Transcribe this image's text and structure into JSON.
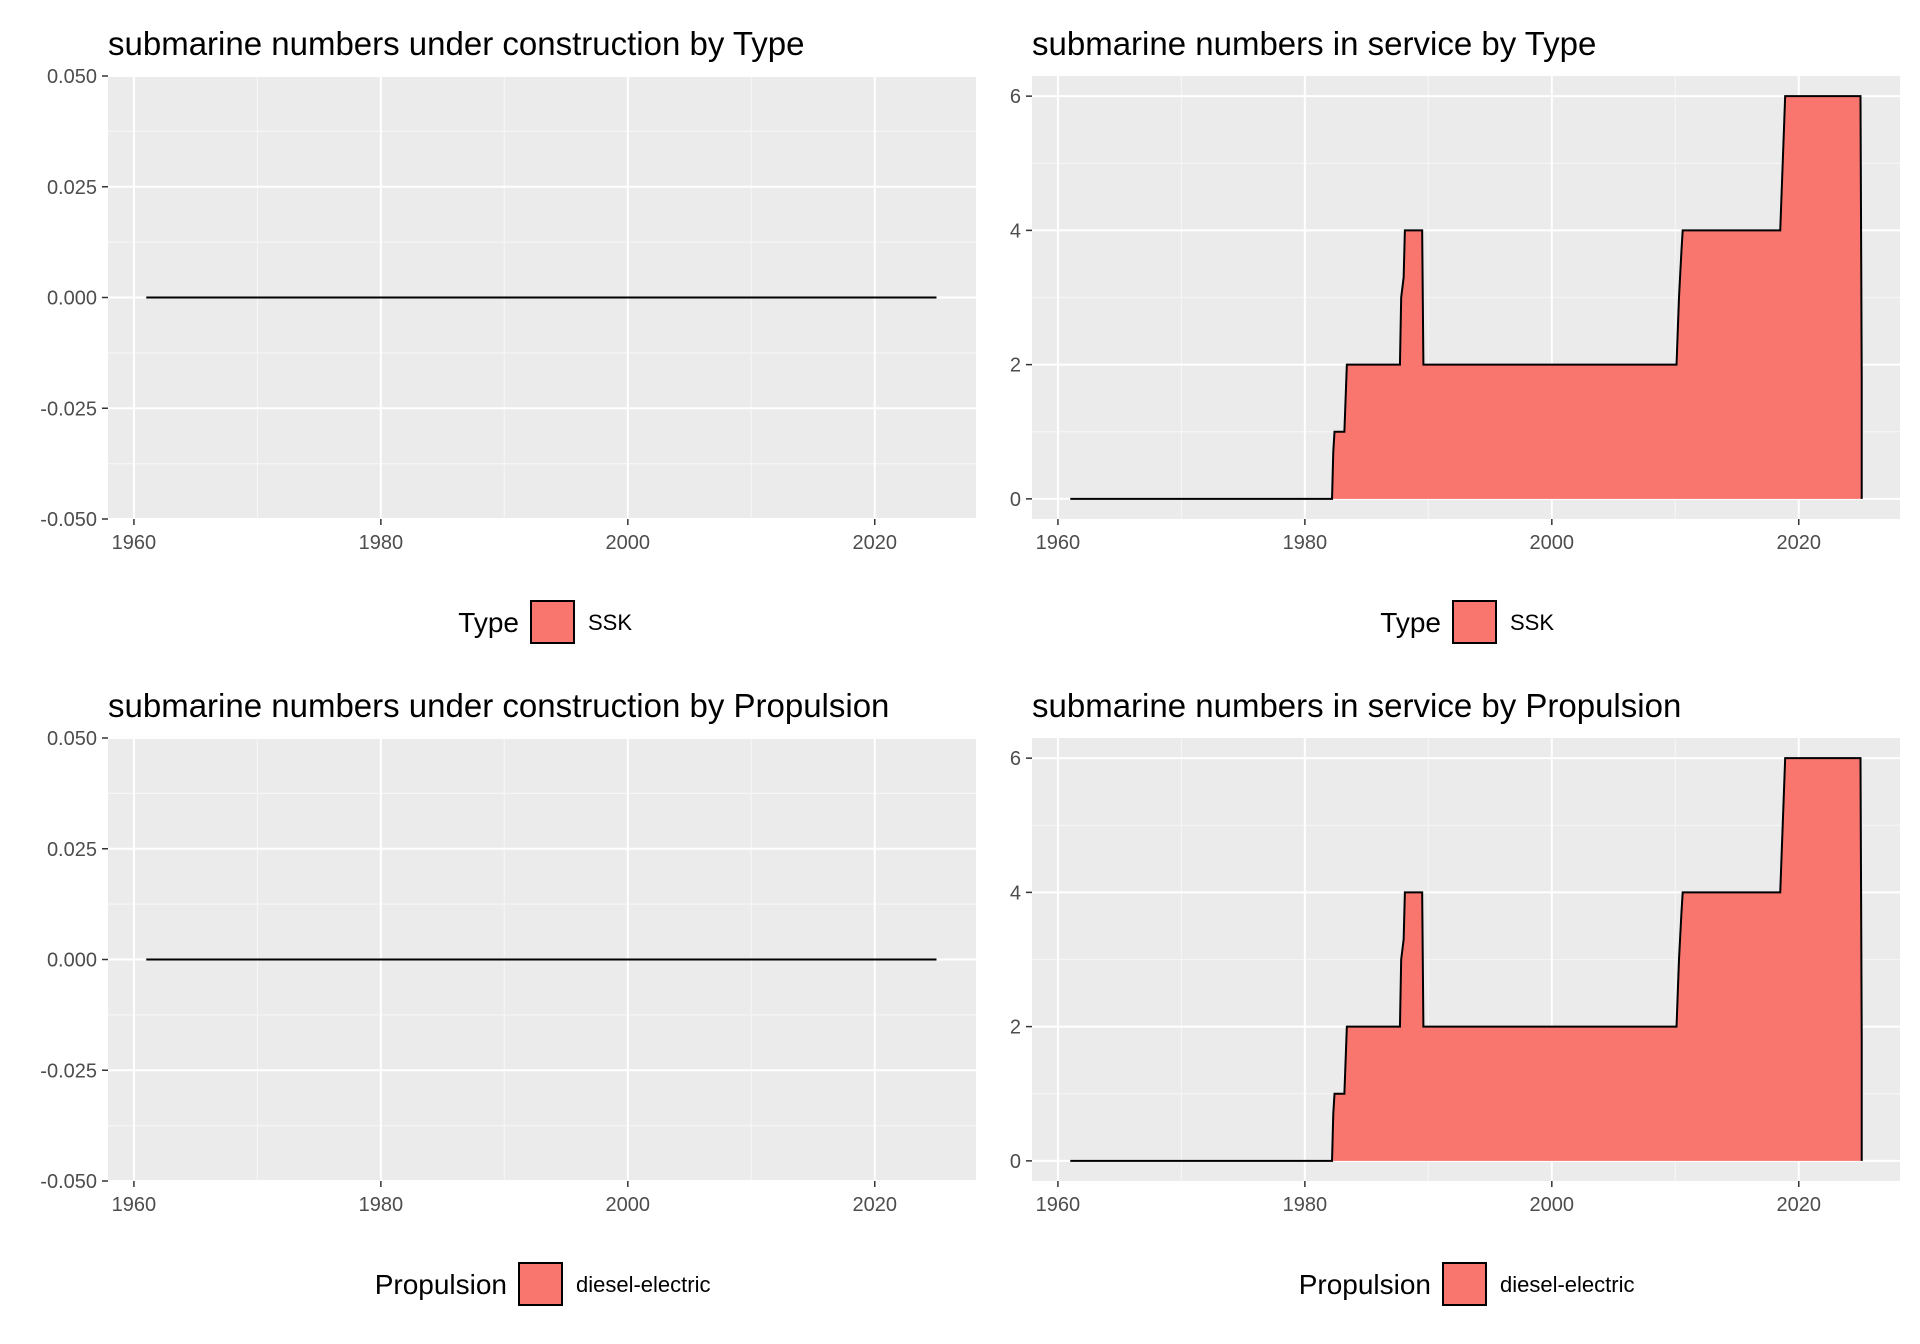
{
  "chart_data": [
    {
      "type": "area",
      "title": "submarine numbers under construction by Type",
      "xlabel": "",
      "ylabel": "",
      "xlim": [
        1957.9,
        2028.2
      ],
      "ylim": [
        -0.05,
        0.05
      ],
      "x_ticks": [
        1960,
        1980,
        2000,
        2020
      ],
      "y_ticks": [
        -0.05,
        -0.025,
        0,
        0.025,
        0.05
      ],
      "x_tick_labels": [
        "1960",
        "1980",
        "2000",
        "2020"
      ],
      "y_tick_labels": [
        "-0.050",
        "-0.025",
        "0.000",
        "0.025",
        "0.050"
      ],
      "grid": true,
      "legend": {
        "position": "bottom",
        "title": "Type",
        "entries": [
          {
            "label": "SSK",
            "color": "#F8766D"
          }
        ]
      },
      "series": [
        {
          "name": "SSK",
          "color": "#F8766D",
          "points": [
            [
              1961,
              0
            ],
            [
              2025,
              0
            ]
          ]
        }
      ]
    },
    {
      "type": "area",
      "title": "submarine numbers in service by Type",
      "xlabel": "",
      "ylabel": "",
      "xlim": [
        1957.9,
        2028.2
      ],
      "ylim": [
        -0.3,
        6.3
      ],
      "x_ticks": [
        1960,
        1980,
        2000,
        2020
      ],
      "y_ticks": [
        0,
        2,
        4,
        6
      ],
      "x_tick_labels": [
        "1960",
        "1980",
        "2000",
        "2020"
      ],
      "y_tick_labels": [
        "0",
        "2",
        "4",
        "6"
      ],
      "grid": true,
      "legend": {
        "position": "bottom",
        "title": "Type",
        "entries": [
          {
            "label": "SSK",
            "color": "#F8766D"
          }
        ]
      },
      "series": [
        {
          "name": "SSK",
          "color": "#F8766D",
          "points": [
            [
              1961,
              0
            ],
            [
              1982.2,
              0
            ],
            [
              1982.3,
              0.7
            ],
            [
              1982.4,
              1
            ],
            [
              1983.2,
              1
            ],
            [
              1983.3,
              1.5
            ],
            [
              1983.4,
              2
            ],
            [
              1987.7,
              2
            ],
            [
              1987.8,
              3
            ],
            [
              1988,
              3.3
            ],
            [
              1988.1,
              4
            ],
            [
              1989.5,
              4
            ],
            [
              1989.6,
              2
            ],
            [
              2010.1,
              2
            ],
            [
              2010.3,
              3
            ],
            [
              2010.5,
              3.7
            ],
            [
              2010.6,
              4
            ],
            [
              2018.5,
              4
            ],
            [
              2018.7,
              5
            ],
            [
              2018.9,
              6
            ],
            [
              2025,
              6
            ],
            [
              2025.1,
              1.8
            ],
            [
              2025.1,
              0
            ]
          ]
        }
      ]
    },
    {
      "type": "area",
      "title": "submarine numbers under construction by Propulsion",
      "xlabel": "",
      "ylabel": "",
      "xlim": [
        1957.9,
        2028.2
      ],
      "ylim": [
        -0.05,
        0.05
      ],
      "x_ticks": [
        1960,
        1980,
        2000,
        2020
      ],
      "y_ticks": [
        -0.05,
        -0.025,
        0,
        0.025,
        0.05
      ],
      "x_tick_labels": [
        "1960",
        "1980",
        "2000",
        "2020"
      ],
      "y_tick_labels": [
        "-0.050",
        "-0.025",
        "0.000",
        "0.025",
        "0.050"
      ],
      "grid": true,
      "legend": {
        "position": "bottom",
        "title": "Propulsion",
        "entries": [
          {
            "label": "diesel-electric",
            "color": "#F8766D"
          }
        ]
      },
      "series": [
        {
          "name": "diesel-electric",
          "color": "#F8766D",
          "points": [
            [
              1961,
              0
            ],
            [
              2025,
              0
            ]
          ]
        }
      ]
    },
    {
      "type": "area",
      "title": "submarine numbers in service by Propulsion",
      "xlabel": "",
      "ylabel": "",
      "xlim": [
        1957.9,
        2028.2
      ],
      "ylim": [
        -0.3,
        6.3
      ],
      "x_ticks": [
        1960,
        1980,
        2000,
        2020
      ],
      "y_ticks": [
        0,
        2,
        4,
        6
      ],
      "x_tick_labels": [
        "1960",
        "1980",
        "2000",
        "2020"
      ],
      "y_tick_labels": [
        "0",
        "2",
        "4",
        "6"
      ],
      "grid": true,
      "legend": {
        "position": "bottom",
        "title": "Propulsion",
        "entries": [
          {
            "label": "diesel-electric",
            "color": "#F8766D"
          }
        ]
      },
      "series": [
        {
          "name": "diesel-electric",
          "color": "#F8766D",
          "points": [
            [
              1961,
              0
            ],
            [
              1982.2,
              0
            ],
            [
              1982.3,
              0.7
            ],
            [
              1982.4,
              1
            ],
            [
              1983.2,
              1
            ],
            [
              1983.3,
              1.5
            ],
            [
              1983.4,
              2
            ],
            [
              1987.7,
              2
            ],
            [
              1987.8,
              3
            ],
            [
              1988,
              3.3
            ],
            [
              1988.1,
              4
            ],
            [
              1989.5,
              4
            ],
            [
              1989.6,
              2
            ],
            [
              2010.1,
              2
            ],
            [
              2010.3,
              3
            ],
            [
              2010.5,
              3.7
            ],
            [
              2010.6,
              4
            ],
            [
              2018.5,
              4
            ],
            [
              2018.7,
              5
            ],
            [
              2018.9,
              6
            ],
            [
              2025,
              6
            ],
            [
              2025.1,
              1.8
            ],
            [
              2025.1,
              0
            ]
          ]
        }
      ]
    }
  ]
}
